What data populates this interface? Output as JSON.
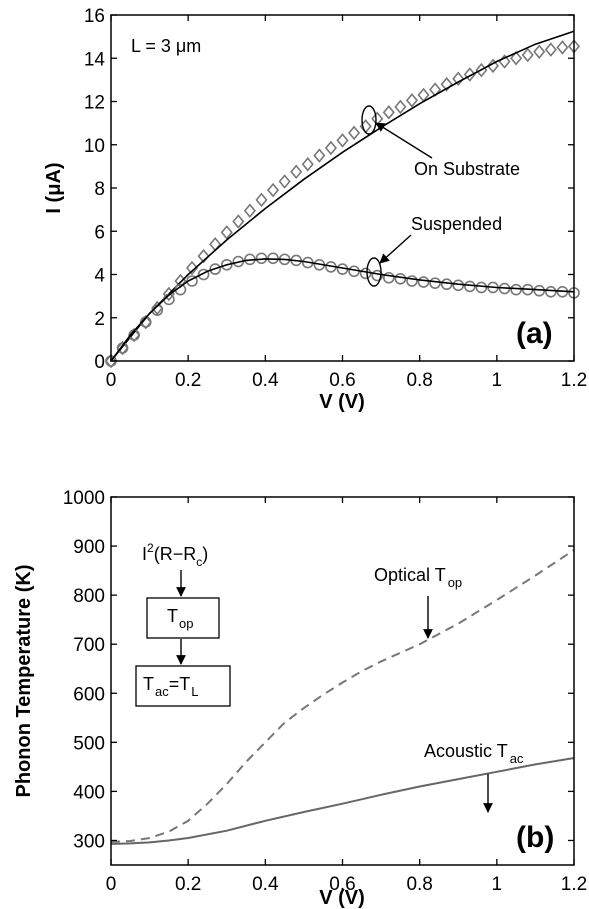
{
  "chart_data": [
    {
      "panel": "(a)",
      "type": "line",
      "xlabel": "V (V)",
      "ylabel": "I (μA)",
      "xlim": [
        0,
        1.2
      ],
      "ylim": [
        0,
        16
      ],
      "xticks": [
        0,
        0.2,
        0.4,
        0.6,
        0.8,
        1,
        1.2
      ],
      "xtick_labels": [
        "0",
        "0.2",
        "0.4",
        "0.6",
        "0.8",
        "1",
        "1.2"
      ],
      "yticks": [
        0,
        2,
        4,
        6,
        8,
        10,
        12,
        14,
        16
      ],
      "ytick_labels": [
        "0",
        "2",
        "4",
        "6",
        "8",
        "10",
        "12",
        "14",
        "16"
      ],
      "grid": false,
      "inset_text": "L = 3 μm",
      "annotations": [
        "On Substrate",
        "Suspended"
      ],
      "series": [
        {
          "marker": "diamond",
          "color": "#777777",
          "x": [
            0,
            0.03,
            0.06,
            0.09,
            0.12,
            0.15,
            0.18,
            0.21,
            0.24,
            0.27,
            0.3,
            0.33,
            0.36,
            0.39,
            0.42,
            0.45,
            0.48,
            0.51,
            0.54,
            0.57,
            0.6,
            0.63,
            0.66,
            0.69,
            0.72,
            0.75,
            0.78,
            0.81,
            0.84,
            0.87,
            0.9,
            0.93,
            0.96,
            0.99,
            1.02,
            1.05,
            1.08,
            1.11,
            1.14,
            1.17,
            1.2
          ],
          "y": [
            0,
            0.6,
            1.2,
            1.8,
            2.45,
            3.1,
            3.7,
            4.3,
            4.85,
            5.4,
            5.95,
            6.45,
            6.95,
            7.45,
            7.9,
            8.3,
            8.75,
            9.1,
            9.5,
            9.85,
            10.2,
            10.55,
            10.85,
            11.2,
            11.5,
            11.75,
            12.05,
            12.3,
            12.55,
            12.8,
            13.05,
            13.25,
            13.45,
            13.65,
            13.85,
            14.0,
            14.15,
            14.3,
            14.4,
            14.5,
            14.55
          ]
        },
        {
          "marker": "none",
          "color": "#000000",
          "x": [
            0,
            0.1,
            0.2,
            0.3,
            0.4,
            0.5,
            0.6,
            0.7,
            0.8,
            0.9,
            1.0,
            1.1,
            1.2
          ],
          "y": [
            0,
            2.2,
            4.0,
            5.6,
            7.05,
            8.4,
            9.65,
            10.8,
            11.9,
            12.9,
            13.85,
            14.65,
            15.25
          ]
        },
        {
          "marker": "circle",
          "color": "#777777",
          "x": [
            0,
            0.03,
            0.06,
            0.09,
            0.12,
            0.15,
            0.18,
            0.21,
            0.24,
            0.27,
            0.3,
            0.33,
            0.36,
            0.39,
            0.42,
            0.45,
            0.48,
            0.51,
            0.54,
            0.57,
            0.6,
            0.63,
            0.66,
            0.69,
            0.72,
            0.75,
            0.78,
            0.81,
            0.84,
            0.87,
            0.9,
            0.93,
            0.96,
            0.99,
            1.02,
            1.05,
            1.08,
            1.11,
            1.14,
            1.17,
            1.2
          ],
          "y": [
            0,
            0.6,
            1.2,
            1.8,
            2.35,
            2.85,
            3.3,
            3.7,
            4.0,
            4.25,
            4.45,
            4.6,
            4.7,
            4.75,
            4.75,
            4.7,
            4.65,
            4.55,
            4.45,
            4.35,
            4.25,
            4.15,
            4.05,
            3.95,
            3.85,
            3.8,
            3.7,
            3.65,
            3.6,
            3.55,
            3.5,
            3.45,
            3.4,
            3.4,
            3.35,
            3.3,
            3.3,
            3.25,
            3.2,
            3.2,
            3.15
          ]
        },
        {
          "marker": "none",
          "color": "#000000",
          "x": [
            0,
            0.05,
            0.1,
            0.15,
            0.2,
            0.25,
            0.3,
            0.35,
            0.4,
            0.45,
            0.5,
            0.6,
            0.7,
            0.8,
            0.9,
            1.0,
            1.1,
            1.2
          ],
          "y": [
            0,
            1.2,
            2.2,
            3.05,
            3.7,
            4.15,
            4.45,
            4.65,
            4.72,
            4.7,
            4.6,
            4.3,
            4.0,
            3.75,
            3.55,
            3.4,
            3.3,
            3.2
          ]
        }
      ]
    },
    {
      "panel": "(b)",
      "type": "line",
      "xlabel": "V (V)",
      "ylabel": "Phonon Temperature (K)",
      "xlim": [
        0,
        1.2
      ],
      "ylim": [
        250,
        1000
      ],
      "xticks": [
        0,
        0.2,
        0.4,
        0.6,
        0.8,
        1,
        1.2
      ],
      "xtick_labels": [
        "0",
        "0.2",
        "0.4",
        "0.6",
        "0.8",
        "1",
        "1.2"
      ],
      "yticks": [
        300,
        400,
        500,
        600,
        700,
        800,
        900,
        1000
      ],
      "ytick_labels": [
        "300",
        "400",
        "500",
        "600",
        "700",
        "800",
        "900",
        "1000"
      ],
      "grid": false,
      "annotations": [
        "Optical T",
        "op",
        "Acoustic T",
        "ac"
      ],
      "inset": {
        "top_text": "I",
        "top_sup": "2",
        "top_rest": "(R−R",
        "top_sub": "c",
        "top_close": ")",
        "box1_main": "T",
        "box1_sub": "op",
        "box2_main1": "T",
        "box2_sub1": "ac",
        "box2_eq": "=T",
        "box2_sub2": "L"
      },
      "series": [
        {
          "name": "Optical T op",
          "style": "dashed",
          "color": "#777777",
          "x": [
            0,
            0.05,
            0.1,
            0.15,
            0.2,
            0.25,
            0.3,
            0.35,
            0.4,
            0.45,
            0.5,
            0.55,
            0.6,
            0.65,
            0.7,
            0.8,
            0.9,
            1.0,
            1.1,
            1.2
          ],
          "y": [
            297,
            299,
            305,
            318,
            340,
            375,
            415,
            460,
            500,
            540,
            570,
            597,
            622,
            645,
            665,
            700,
            742,
            790,
            840,
            892
          ]
        },
        {
          "name": "Acoustic T ac",
          "style": "solid",
          "color": "#666666",
          "x": [
            0,
            0.05,
            0.1,
            0.15,
            0.2,
            0.3,
            0.4,
            0.5,
            0.6,
            0.7,
            0.8,
            0.9,
            1.0,
            1.1,
            1.2
          ],
          "y": [
            293,
            294,
            296,
            300,
            305,
            320,
            340,
            358,
            375,
            393,
            410,
            425,
            440,
            455,
            468
          ]
        }
      ]
    }
  ]
}
